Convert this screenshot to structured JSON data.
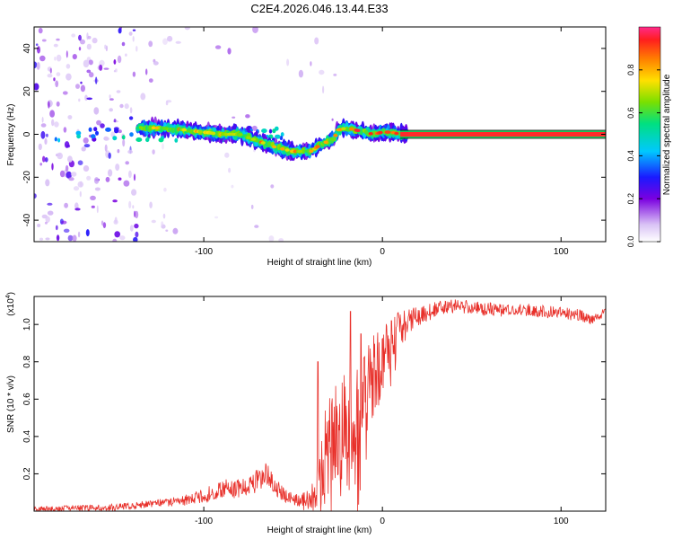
{
  "title": "C2E4.2026.046.13.44.E33",
  "colors": {
    "signal": "#e8302a",
    "axis": "#000000",
    "background": "#ffffff"
  },
  "chart_data": [
    {
      "type": "heatmap",
      "name": "spectrogram",
      "xlabel": "Height of straight line (km)",
      "ylabel": "Frequency (Hz)",
      "xlim": [
        -195,
        125
      ],
      "ylim": [
        -50,
        50
      ],
      "xticks": [
        -100,
        0,
        100
      ],
      "xtick_labels": [
        "-100",
        "0",
        "100"
      ],
      "yticks": [
        -40,
        -20,
        0,
        20,
        40
      ],
      "ytick_labels": [
        "-40",
        "-20",
        "0",
        "20",
        "40"
      ],
      "colorbar": {
        "label": "Normalized spectral amplitude",
        "range": [
          0,
          1
        ],
        "ticks": [
          0.0,
          0.2,
          0.4,
          0.6,
          0.8
        ],
        "tick_labels": [
          "0.0",
          "0.2",
          "0.4",
          "0.6",
          "0.8"
        ]
      },
      "ridge": {
        "x": [
          -137,
          -125,
          -110,
          -100,
          -90,
          -80,
          -70,
          -60,
          -50,
          -40,
          -35,
          -30,
          -27,
          -25,
          -20,
          -15,
          -10,
          -5,
          0,
          5,
          10,
          15,
          125
        ],
        "y": [
          3,
          3,
          2,
          1,
          0,
          0,
          -3,
          -6,
          -8,
          -8,
          -5,
          -3,
          -2,
          2,
          3,
          2,
          1,
          0,
          1,
          1,
          0,
          0,
          0
        ]
      },
      "tone": {
        "x_start": 10,
        "x_end": 125,
        "frequency": 0
      }
    },
    {
      "type": "line",
      "name": "snr",
      "xlabel": "Height of straight line (km)",
      "ylabel": "SNR (10 * v/v)",
      "y_scale_label": "(x10",
      "y_scale_exponent": "4",
      "xlim": [
        -195,
        125
      ],
      "ylim": [
        0,
        1.15
      ],
      "xticks": [
        -100,
        0,
        100
      ],
      "xtick_labels": [
        "-100",
        "0",
        "100"
      ],
      "yticks": [
        0.2,
        0.4,
        0.6,
        0.8,
        1.0
      ],
      "ytick_labels": [
        "0.2",
        "0.4",
        "0.6",
        "0.8",
        "1.0"
      ],
      "trend": {
        "x": [
          -195,
          -150,
          -130,
          -110,
          -100,
          -90,
          -80,
          -70,
          -65,
          -60,
          -55,
          -45,
          -40,
          -35,
          -30,
          -25,
          -20,
          -15,
          -10,
          -5,
          0,
          5,
          10,
          15,
          20,
          30,
          40,
          50,
          60,
          70,
          80,
          90,
          100,
          110,
          115,
          120,
          125
        ],
        "y": [
          0.01,
          0.02,
          0.04,
          0.06,
          0.08,
          0.12,
          0.12,
          0.16,
          0.2,
          0.14,
          0.08,
          0.05,
          0.06,
          0.22,
          0.35,
          0.42,
          0.45,
          0.55,
          0.62,
          0.72,
          0.82,
          0.9,
          0.97,
          1.02,
          1.04,
          1.08,
          1.1,
          1.09,
          1.08,
          1.07,
          1.08,
          1.07,
          1.06,
          1.05,
          1.03,
          1.04,
          1.06
        ]
      },
      "noise_envelope": {
        "x": [
          -195,
          -130,
          -110,
          -90,
          -75,
          -70,
          -60,
          -50,
          -40,
          -35,
          -30,
          -20,
          -10,
          0,
          10,
          20,
          40,
          125
        ],
        "amp": [
          0.015,
          0.02,
          0.03,
          0.05,
          0.05,
          0.07,
          0.05,
          0.03,
          0.06,
          0.22,
          0.28,
          0.3,
          0.25,
          0.2,
          0.1,
          0.05,
          0.04,
          0.03
        ]
      },
      "peaks": [
        {
          "x": -36,
          "y": 0.8
        },
        {
          "x": -18,
          "y": 1.07
        },
        {
          "x": -12,
          "y": 0.95
        },
        {
          "x": 5,
          "y": 1.02
        }
      ]
    }
  ]
}
